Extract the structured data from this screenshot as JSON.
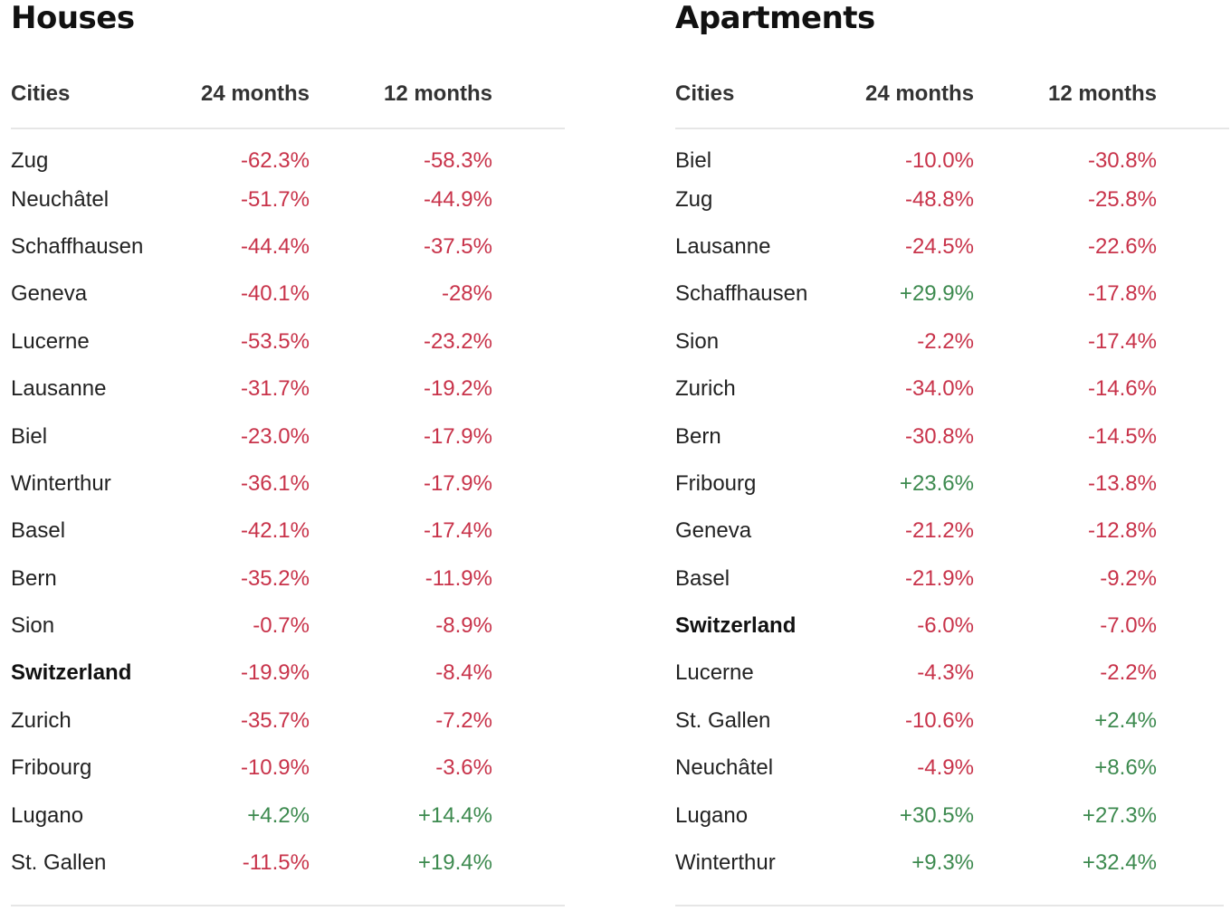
{
  "houses": {
    "title": "Houses",
    "headers": {
      "city": "Cities",
      "m24": "24 months",
      "m12": "12 months"
    },
    "rows": [
      {
        "city": "Zug",
        "m24": "-62.3%",
        "m12": "-58.3%"
      },
      {
        "city": "Neuchâtel",
        "m24": "-51.7%",
        "m12": "-44.9%"
      },
      {
        "city": "Schaffhausen",
        "m24": "-44.4%",
        "m12": "-37.5%"
      },
      {
        "city": "Geneva",
        "m24": "-40.1%",
        "m12": "-28%"
      },
      {
        "city": "Lucerne",
        "m24": "-53.5%",
        "m12": "-23.2%"
      },
      {
        "city": "Lausanne",
        "m24": "-31.7%",
        "m12": "-19.2%"
      },
      {
        "city": "Biel",
        "m24": "-23.0%",
        "m12": "-17.9%"
      },
      {
        "city": "Winterthur",
        "m24": "-36.1%",
        "m12": "-17.9%"
      },
      {
        "city": "Basel",
        "m24": "-42.1%",
        "m12": "-17.4%"
      },
      {
        "city": "Bern",
        "m24": "-35.2%",
        "m12": "-11.9%"
      },
      {
        "city": "Sion",
        "m24": "-0.7%",
        "m12": "-8.9%"
      },
      {
        "city": "Switzerland",
        "m24": "-19.9%",
        "m12": "-8.4%",
        "bold": true
      },
      {
        "city": "Zurich",
        "m24": "-35.7%",
        "m12": "-7.2%"
      },
      {
        "city": "Fribourg",
        "m24": "-10.9%",
        "m12": "-3.6%"
      },
      {
        "city": "Lugano",
        "m24": "+4.2%",
        "m12": "+14.4%"
      },
      {
        "city": "St. Gallen",
        "m24": "-11.5%",
        "m12": "+19.4%"
      }
    ]
  },
  "apartments": {
    "title": "Apartments",
    "headers": {
      "city": "Cities",
      "m24": "24 months",
      "m12": "12 months"
    },
    "rows": [
      {
        "city": "Biel",
        "m24": "-10.0%",
        "m12": "-30.8%"
      },
      {
        "city": "Zug",
        "m24": "-48.8%",
        "m12": "-25.8%"
      },
      {
        "city": "Lausanne",
        "m24": "-24.5%",
        "m12": "-22.6%"
      },
      {
        "city": "Schaffhausen",
        "m24": "+29.9%",
        "m12": "-17.8%"
      },
      {
        "city": "Sion",
        "m24": "-2.2%",
        "m12": "-17.4%"
      },
      {
        "city": "Zurich",
        "m24": "-34.0%",
        "m12": "-14.6%"
      },
      {
        "city": "Bern",
        "m24": "-30.8%",
        "m12": "-14.5%"
      },
      {
        "city": "Fribourg",
        "m24": "+23.6%",
        "m12": "-13.8%"
      },
      {
        "city": "Geneva",
        "m24": "-21.2%",
        "m12": "-12.8%"
      },
      {
        "city": "Basel",
        "m24": "-21.9%",
        "m12": "-9.2%"
      },
      {
        "city": "Switzerland",
        "m24": "-6.0%",
        "m12": "-7.0%",
        "bold": true
      },
      {
        "city": "Lucerne",
        "m24": "-4.3%",
        "m12": "-2.2%"
      },
      {
        "city": "St. Gallen",
        "m24": "-10.6%",
        "m12": "+2.4%"
      },
      {
        "city": "Neuchâtel",
        "m24": "-4.9%",
        "m12": "+8.6%"
      },
      {
        "city": "Lugano",
        "m24": "+30.5%",
        "m12": "+27.3%"
      },
      {
        "city": "Winterthur",
        "m24": "+9.3%",
        "m12": "+32.4%"
      }
    ]
  },
  "colors": {
    "negative": "#c8334a",
    "positive": "#3d8a4f"
  }
}
